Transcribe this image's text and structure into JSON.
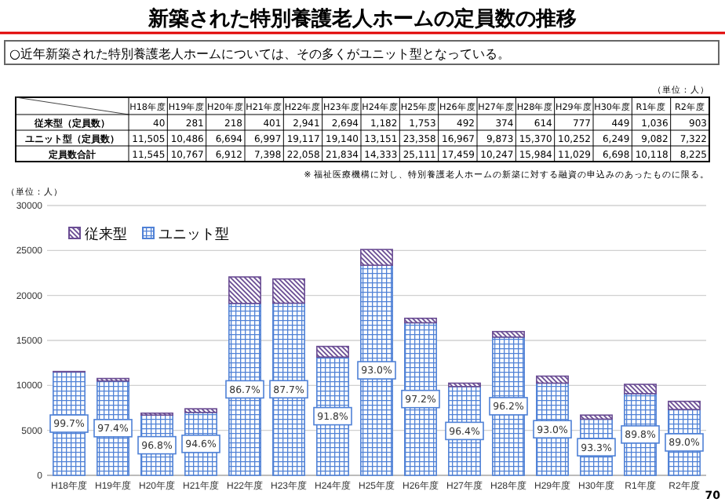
{
  "chart_data": [
    {
      "type": "other",
      "title": "新築された特別養護老人ホームの定員数の推移",
      "subtitle": "○近年新築された特別養護老人ホームについては、その多くがユニット型となっている。",
      "annotations": [
        "（単位：人）",
        "※ 福祉医療機構に対し、特別養護老人ホームの新築に対する融資の申込みのあったものに限る。"
      ],
      "categories": [
        "H18年度",
        "H19年度",
        "H20年度",
        "H21年度",
        "H22年度",
        "H23年度",
        "H24年度",
        "H25年度",
        "H26年度",
        "H27年度",
        "H28年度",
        "H29年度",
        "H30年度",
        "R1年度",
        "R2年度"
      ],
      "series": [
        {
          "name": "従来型（定員数）",
          "values": [
            40,
            281,
            218,
            401,
            2941,
            2694,
            1182,
            1753,
            492,
            374,
            614,
            777,
            449,
            1036,
            903
          ],
          "value_labels": [
            "40",
            "281",
            "218",
            "401",
            "2,941",
            "2,694",
            "1,182",
            "1,753",
            "492",
            "374",
            "614",
            "777",
            "449",
            "1,036",
            "903"
          ]
        },
        {
          "name": "ユニット型（定員数）",
          "values": [
            11505,
            10486,
            6694,
            6997,
            19117,
            19140,
            13151,
            23358,
            16967,
            9873,
            15370,
            10252,
            6249,
            9082,
            7322
          ],
          "value_labels": [
            "11,505",
            "10,486",
            "6,694",
            "6,997",
            "19,117",
            "19,140",
            "13,151",
            "23,358",
            "16,967",
            "9,873",
            "15,370",
            "10,252",
            "6,249",
            "9,082",
            "7,322"
          ]
        },
        {
          "name": "定員数合計",
          "values": [
            11545,
            10767,
            6912,
            7398,
            22058,
            21834,
            14333,
            25111,
            17459,
            10247,
            15984,
            11029,
            6698,
            10118,
            8225
          ],
          "value_labels": [
            "11,545",
            "10,767",
            "6,912",
            "7,398",
            "22,058",
            "21,834",
            "14,333",
            "25,111",
            "17,459",
            "10,247",
            "15,984",
            "11,029",
            "6,698",
            "10,118",
            "8,225"
          ]
        }
      ]
    },
    {
      "type": "bar",
      "annotations": [
        "（単位：人）",
        "70",
        {
          "text": "99.7%",
          "x": "H18年度"
        },
        {
          "text": "97.4%",
          "x": "H19年度"
        },
        {
          "text": "96.8%",
          "x": "H20年度"
        },
        {
          "text": "94.6%",
          "x": "H21年度"
        },
        {
          "text": "86.7%",
          "x": "H22年度"
        },
        {
          "text": "87.7%",
          "x": "H23年度"
        },
        {
          "text": "91.8%",
          "x": "H24年度"
        },
        {
          "text": "93.0%",
          "x": "H25年度"
        },
        {
          "text": "97.2%",
          "x": "H26年度"
        },
        {
          "text": "96.4%",
          "x": "H27年度"
        },
        {
          "text": "96.2%",
          "x": "H28年度"
        },
        {
          "text": "93.0%",
          "x": "H29年度"
        },
        {
          "text": "93.3%",
          "x": "H30年度"
        },
        {
          "text": "89.8%",
          "x": "R1年度"
        },
        {
          "text": "89.0%",
          "x": "R2年度"
        }
      ],
      "categories": [
        "H18年度",
        "H19年度",
        "H20年度",
        "H21年度",
        "H22年度",
        "H23年度",
        "H24年度",
        "H25年度",
        "H26年度",
        "H27年度",
        "H28年度",
        "H29年度",
        "H30年度",
        "R1年度",
        "R2年度"
      ],
      "series": [
        {
          "name": "ユニット型",
          "color": "#4f81d6",
          "values": [
            11505,
            10486,
            6694,
            6997,
            19117,
            19140,
            13151,
            23358,
            16967,
            9873,
            15370,
            10252,
            6249,
            9082,
            7322
          ]
        },
        {
          "name": "従来型",
          "color": "#6a4c93",
          "values": [
            40,
            281,
            218,
            401,
            2941,
            2694,
            1182,
            1753,
            492,
            374,
            614,
            777,
            449,
            1036,
            903
          ]
        }
      ],
      "stacked": true,
      "ylim": [
        0,
        30000
      ],
      "yticks": [
        0,
        5000,
        10000,
        15000,
        20000,
        25000,
        30000
      ],
      "grid": "y",
      "legend": "top left"
    }
  ]
}
